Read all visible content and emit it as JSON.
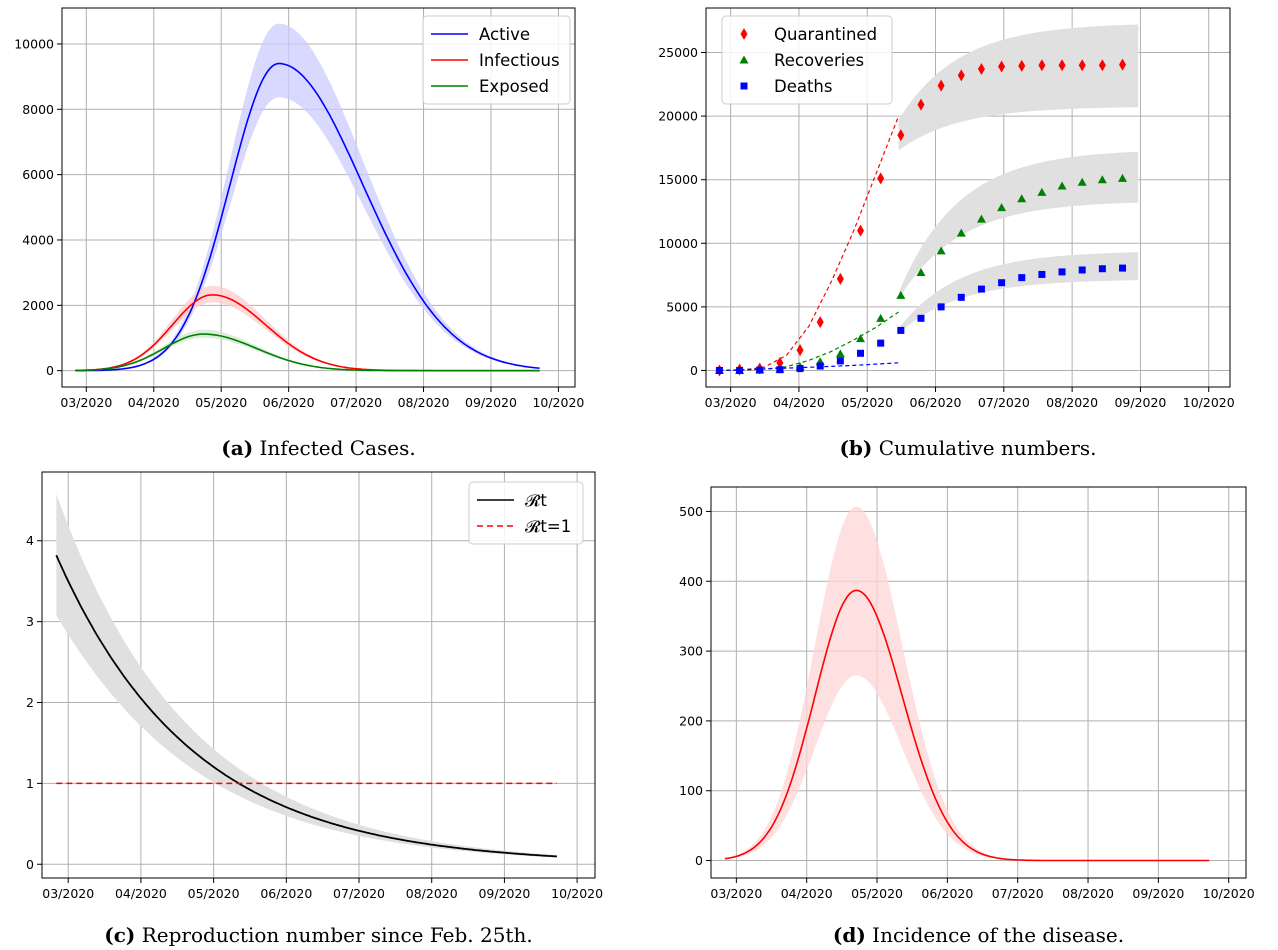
{
  "chart_data": [
    {
      "id": "a",
      "type": "line",
      "caption_label": "(a)",
      "caption": "Infected Cases.",
      "xlabel": "",
      "ylabel": "",
      "x_ticks": [
        "03/2020",
        "04/2020",
        "05/2020",
        "06/2020",
        "07/2020",
        "08/2020",
        "09/2020",
        "10/2020"
      ],
      "y_ticks": [
        0,
        2000,
        4000,
        6000,
        8000,
        10000
      ],
      "xlim": [
        -6,
        226
      ],
      "ylim": [
        -500,
        11100
      ],
      "grid": true,
      "legend": "top-right",
      "series": [
        {
          "name": "Active",
          "color": "#0000ff",
          "band": "#ccccff",
          "peak_x": 92,
          "peak_y": 9400,
          "sd_left": 22,
          "sd_right": 38,
          "hi_factor": 1.13,
          "lo_factor": 0.89,
          "x_start": 0,
          "x_end": 210
        },
        {
          "name": "Infectious",
          "color": "#ff0000",
          "band": "#ffcccc",
          "peak_x": 62,
          "peak_y": 2320,
          "sd_left": 18,
          "sd_right": 24,
          "hi_factor": 1.12,
          "lo_factor": 0.9,
          "x_start": 0,
          "x_end": 210
        },
        {
          "name": "Exposed",
          "color": "#008000",
          "band": "#cde8cd",
          "peak_x": 58,
          "peak_y": 1120,
          "sd_left": 18,
          "sd_right": 24,
          "hi_factor": 1.12,
          "lo_factor": 0.9,
          "x_start": 0,
          "x_end": 210
        }
      ]
    },
    {
      "id": "b",
      "type": "scatter",
      "caption_label": "(b)",
      "caption": "Cumulative numbers.",
      "xlabel": "",
      "ylabel": "",
      "x_ticks": [
        "03/2020",
        "04/2020",
        "05/2020",
        "06/2020",
        "07/2020",
        "08/2020",
        "09/2020",
        "10/2020"
      ],
      "y_ticks": [
        0,
        5000,
        10000,
        15000,
        20000,
        25000
      ],
      "xlim": [
        -6,
        228
      ],
      "ylim": [
        -1300,
        28500
      ],
      "grid": true,
      "legend": "top-left",
      "series": [
        {
          "name": "Quarantined",
          "color": "#ff0000",
          "marker": "diamond",
          "x": [
            0,
            9,
            18,
            27,
            36,
            45,
            54,
            63,
            72,
            81,
            90,
            99,
            108,
            117,
            126,
            135,
            144,
            153,
            162,
            171,
            180
          ],
          "y": [
            0,
            80,
            150,
            600,
            1600,
            3800,
            7200,
            11000,
            15100,
            18500,
            20900,
            22400,
            23200,
            23700,
            23900,
            23950,
            24000,
            24000,
            24000,
            24000,
            24050
          ]
        },
        {
          "name": "Recoveries",
          "color": "#008000",
          "marker": "triangle",
          "x": [
            0,
            9,
            18,
            27,
            36,
            45,
            54,
            63,
            72,
            81,
            90,
            99,
            108,
            117,
            126,
            135,
            144,
            153,
            162,
            171,
            180
          ],
          "y": [
            0,
            0,
            50,
            100,
            300,
            700,
            1300,
            2500,
            4100,
            5900,
            7700,
            9400,
            10800,
            11900,
            12800,
            13500,
            14000,
            14500,
            14800,
            15000,
            15100
          ]
        },
        {
          "name": "Deaths",
          "color": "#0000ff",
          "marker": "square",
          "x": [
            0,
            9,
            18,
            27,
            36,
            45,
            54,
            63,
            72,
            81,
            90,
            99,
            108,
            117,
            126,
            135,
            144,
            153,
            162,
            171,
            180
          ],
          "y": [
            0,
            0,
            30,
            60,
            150,
            350,
            750,
            1350,
            2150,
            3150,
            4100,
            5000,
            5750,
            6400,
            6900,
            7300,
            7550,
            7750,
            7900,
            8000,
            8050
          ]
        }
      ],
      "fits": [
        {
          "color": "#ff0000",
          "x": [
            0,
            10,
            20,
            30,
            40,
            50,
            60,
            70,
            80
          ],
          "y": [
            0,
            40,
            250,
            1200,
            3500,
            7000,
            11000,
            15500,
            20000
          ]
        },
        {
          "color": "#008000",
          "x": [
            0,
            10,
            20,
            30,
            40,
            50,
            60,
            70,
            80
          ],
          "y": [
            0,
            20,
            100,
            300,
            800,
            1500,
            2400,
            3400,
            4600
          ]
        },
        {
          "color": "#0000ff",
          "x": [
            0,
            20,
            40,
            60,
            80
          ],
          "y": [
            0,
            120,
            250,
            400,
            600
          ]
        }
      ],
      "bands": [
        {
          "color": "#e0e0e0",
          "x_start": 80,
          "x_end": 187,
          "lo_start": 17300,
          "lo_end": 20700,
          "hi_start": 19700,
          "hi_end": 27200
        },
        {
          "color": "#e0e0e0",
          "x_start": 80,
          "x_end": 187,
          "lo_start": 5600,
          "lo_end": 13200,
          "hi_start": 6100,
          "hi_end": 17200
        },
        {
          "color": "#e0e0e0",
          "x_start": 80,
          "x_end": 187,
          "lo_start": 2900,
          "lo_end": 7100,
          "hi_start": 3300,
          "hi_end": 9300
        }
      ]
    },
    {
      "id": "c",
      "type": "line",
      "caption_label": "(c)",
      "caption": "Reproduction number since Feb. 25th.",
      "xlabel": "",
      "ylabel": "",
      "x_ticks": [
        "03/2020",
        "04/2020",
        "05/2020",
        "06/2020",
        "07/2020",
        "08/2020",
        "09/2020",
        "10/2020"
      ],
      "y_ticks": [
        0,
        1,
        2,
        3,
        4
      ],
      "xlim": [
        -6,
        226
      ],
      "ylim": [
        -0.17,
        4.85
      ],
      "grid": true,
      "legend": "top-right",
      "series": [
        {
          "name": "𝓡t",
          "color": "#000000",
          "x_start": 0,
          "x_end": 210,
          "y_start": 3.82,
          "decay": 0.0175,
          "band_hi_start": 4.58,
          "band_lo_start": 3.08
        },
        {
          "name": "𝓡t=1",
          "color": "#ff0000",
          "dashed": true,
          "x_start": 0,
          "x_end": 210,
          "y": 1
        }
      ]
    },
    {
      "id": "d",
      "type": "line",
      "caption_label": "(d)",
      "caption": "Incidence of the disease.",
      "xlabel": "",
      "ylabel": "",
      "x_ticks": [
        "03/2020",
        "04/2020",
        "05/2020",
        "06/2020",
        "07/2020",
        "08/2020",
        "09/2020",
        "10/2020"
      ],
      "y_ticks": [
        0,
        100,
        200,
        300,
        400,
        500
      ],
      "xlim": [
        -6,
        226
      ],
      "ylim": [
        -25,
        535
      ],
      "grid": true,
      "legend": "none",
      "series": [
        {
          "name": "",
          "color": "#ff0000",
          "band": "#ffd6d6",
          "peak_x": 57,
          "peak_y": 387,
          "sd_left": 18,
          "sd_right": 20,
          "hi_factor": 1.31,
          "lo_factor": 0.685,
          "x_start": 0,
          "x_end": 210
        }
      ]
    }
  ]
}
